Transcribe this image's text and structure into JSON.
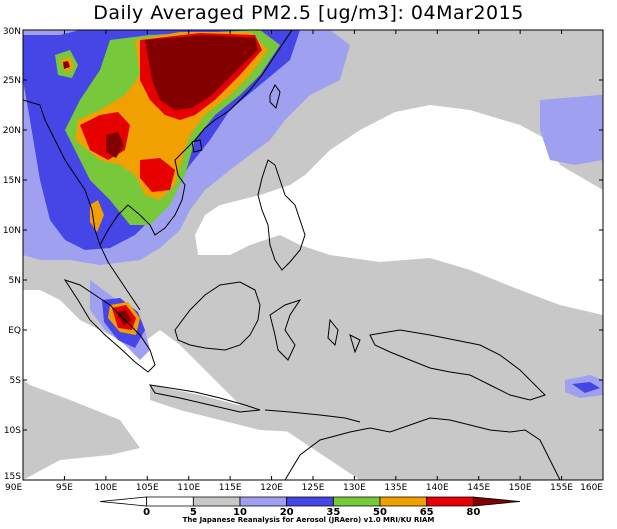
{
  "title": "Daily Averaged PM2.5 [ug/m3]: 04Mar2015",
  "x_ticks": [
    "90E",
    "95E",
    "100E",
    "105E",
    "110E",
    "115E",
    "120E",
    "125E",
    "130E",
    "135E",
    "140E",
    "145E",
    "150E",
    "155E",
    "160E"
  ],
  "y_ticks": [
    "30N",
    "25N",
    "20N",
    "15N",
    "10N",
    "5N",
    "EQ",
    "5S",
    "10S",
    "15S"
  ],
  "colorbar": {
    "labels": [
      "0",
      "5",
      "10",
      "20",
      "35",
      "50",
      "65",
      "80"
    ],
    "colors": [
      "#ffffff",
      "#ffffff",
      "#c8c8c8",
      "#a0a0f0",
      "#4646e6",
      "#78c83c",
      "#f0a000",
      "#e60000",
      "#820000"
    ]
  },
  "credit": "The Japanese Reanalysis for Aerosol (JRAero) v1.0 MRI/KU RIAM",
  "icons": {
    "map": "pm25-concentration-map"
  }
}
